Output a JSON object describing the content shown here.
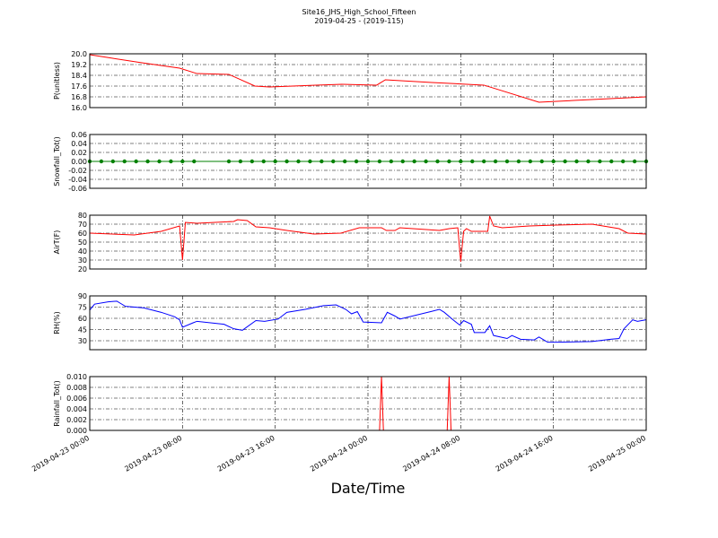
{
  "title": "Site16_JHS_High_School_Fifteen",
  "subtitle": "2019-04-25 - (2019-115)",
  "xlabel": "Date/Time",
  "xlim": [
    "2019-04-23 00:00",
    "2019-04-25 00:00"
  ],
  "xticks": [
    "2019-04-23 00:00",
    "2019-04-23 08:00",
    "2019-04-23 16:00",
    "2019-04-24 00:00",
    "2019-04-24 08:00",
    "2019-04-24 16:00",
    "2019-04-25 00:00"
  ],
  "chart_data": [
    {
      "type": "line",
      "ylabel": "P(unitless)",
      "color": "#ff0000",
      "grid": true,
      "ylim": [
        16.0,
        20.0
      ],
      "yticks": [
        {
          "value": 16.0,
          "label": "16.0"
        },
        16.8,
        17.6,
        18.4,
        19.2,
        {
          "value": 20.0,
          "label": "20.0"
        }
      ],
      "x": [
        "2019-04-23 00:00",
        "2019-04-23 01:30",
        "2019-04-23 04:30",
        "2019-04-23 07:45",
        "2019-04-23 09:15",
        "2019-04-23 12:00",
        "2019-04-23 14:15",
        "2019-04-23 15:30",
        "2019-04-23 19:30",
        "2019-04-23 21:45",
        "2019-04-24 00:45",
        "2019-04-24 01:30",
        "2019-04-24 05:30",
        "2019-04-24 10:00",
        "2019-04-24 11:30",
        "2019-04-24 14:45",
        "2019-04-24 17:45",
        "2019-04-24 22:30",
        "2019-04-25 00:00"
      ],
      "values": [
        19.93,
        19.73,
        19.33,
        18.93,
        18.53,
        18.47,
        17.6,
        17.53,
        17.67,
        17.73,
        17.67,
        18.07,
        17.87,
        17.67,
        17.27,
        16.4,
        16.53,
        16.73,
        16.8
      ]
    },
    {
      "type": "line",
      "ylabel": "Snowfall_Tot()",
      "color": "#008000",
      "markers": true,
      "grid": true,
      "ylim": [
        -0.06,
        0.06
      ],
      "yticks": [
        -0.06,
        -0.04,
        -0.02,
        {
          "value": 0,
          "label": "0.00"
        },
        0.02,
        0.04,
        0.06
      ],
      "x": [
        "2019-04-23 00:00",
        "2019-04-23 01:00",
        "2019-04-23 02:00",
        "2019-04-23 03:00",
        "2019-04-23 04:00",
        "2019-04-23 05:00",
        "2019-04-23 06:00",
        "2019-04-23 07:00",
        "2019-04-23 08:00",
        "2019-04-23 09:00",
        "2019-04-23 12:00",
        "2019-04-23 13:00",
        "2019-04-23 14:00",
        "2019-04-23 15:00",
        "2019-04-23 16:00",
        "2019-04-23 17:00",
        "2019-04-23 18:00",
        "2019-04-23 19:00",
        "2019-04-23 20:00",
        "2019-04-23 21:00",
        "2019-04-23 22:00",
        "2019-04-23 23:00",
        "2019-04-24 00:00",
        "2019-04-24 01:00",
        "2019-04-24 02:00",
        "2019-04-24 03:00",
        "2019-04-24 04:00",
        "2019-04-24 05:00",
        "2019-04-24 06:00",
        "2019-04-24 07:00",
        "2019-04-24 08:00",
        "2019-04-24 09:00",
        "2019-04-24 10:00",
        "2019-04-24 11:00",
        "2019-04-24 12:00",
        "2019-04-24 13:00",
        "2019-04-24 14:00",
        "2019-04-24 15:00",
        "2019-04-24 16:00",
        "2019-04-24 17:00",
        "2019-04-24 18:00",
        "2019-04-24 19:00",
        "2019-04-24 20:00",
        "2019-04-24 21:00",
        "2019-04-24 22:00",
        "2019-04-24 23:00",
        "2019-04-25 00:00"
      ],
      "values": [
        0,
        0,
        0,
        0,
        0,
        0,
        0,
        0,
        0,
        0,
        0,
        0,
        0,
        0,
        0,
        0,
        0,
        0,
        0,
        0,
        0,
        0,
        0,
        0,
        0,
        0,
        0,
        0,
        0,
        0,
        0,
        0,
        0,
        0,
        0,
        0,
        0,
        0,
        0,
        0,
        0,
        0,
        0,
        0,
        0,
        0,
        0
      ]
    },
    {
      "type": "line",
      "ylabel": "AirT(F)",
      "color": "#ff0000",
      "grid": true,
      "ylim": [
        20,
        80
      ],
      "yticks": [
        20,
        30,
        40,
        50,
        60,
        70,
        80
      ],
      "x": [
        "2019-04-23 00:00",
        "2019-04-23 03:50",
        "2019-04-23 06:10",
        "2019-04-23 07:45",
        "2019-04-23 08:00",
        "2019-04-23 08:15",
        "2019-04-23 09:15",
        "2019-04-23 12:25",
        "2019-04-23 12:45",
        "2019-04-23 13:35",
        "2019-04-23 14:20",
        "2019-04-23 15:30",
        "2019-04-23 17:00",
        "2019-04-23 19:20",
        "2019-04-23 21:40",
        "2019-04-23 23:15",
        "2019-04-24 01:10",
        "2019-04-24 01:35",
        "2019-04-24 02:20",
        "2019-04-24 02:45",
        "2019-04-24 06:10",
        "2019-04-24 07:00",
        "2019-04-24 07:45",
        "2019-04-24 08:00",
        "2019-04-24 08:15",
        "2019-04-24 08:30",
        "2019-04-24 08:55",
        "2019-04-24 10:20",
        "2019-04-24 10:30",
        "2019-04-24 10:50",
        "2019-04-24 11:35",
        "2019-04-24 13:55",
        "2019-04-24 16:15",
        "2019-04-24 19:20",
        "2019-04-24 21:40",
        "2019-04-24 22:25",
        "2019-04-25 00:00"
      ],
      "values": [
        60,
        58,
        62,
        68,
        30,
        72,
        71,
        73,
        75,
        74,
        67,
        66,
        63,
        59,
        60,
        66,
        66,
        63,
        63,
        66,
        63,
        65,
        66,
        28,
        62,
        65,
        62,
        62,
        79,
        68,
        66,
        68,
        69,
        70,
        65,
        60,
        59
      ]
    },
    {
      "type": "line",
      "ylabel": "RH(%)",
      "color": "#0000ff",
      "grid": true,
      "ylim": [
        18,
        90
      ],
      "yticks": [
        30,
        45,
        60,
        75,
        90
      ],
      "x": [
        "2019-04-23 00:00",
        "2019-04-23 00:25",
        "2019-04-23 01:35",
        "2019-04-23 02:20",
        "2019-04-23 03:05",
        "2019-04-23 04:40",
        "2019-04-23 06:10",
        "2019-04-23 07:20",
        "2019-04-23 07:45",
        "2019-04-23 08:00",
        "2019-04-23 08:55",
        "2019-04-23 09:15",
        "2019-04-23 11:35",
        "2019-04-23 12:25",
        "2019-04-23 13:10",
        "2019-04-23 14:20",
        "2019-04-23 15:05",
        "2019-04-23 16:15",
        "2019-04-23 17:00",
        "2019-04-23 18:35",
        "2019-04-23 20:10",
        "2019-04-23 21:15",
        "2019-04-23 22:05",
        "2019-04-23 22:35",
        "2019-04-23 23:05",
        "2019-04-23 23:35",
        "2019-04-24 01:10",
        "2019-04-24 01:40",
        "2019-04-24 02:20",
        "2019-04-24 02:45",
        "2019-04-24 05:25",
        "2019-04-24 06:10",
        "2019-04-24 06:35",
        "2019-04-24 07:20",
        "2019-04-24 07:55",
        "2019-04-24 08:15",
        "2019-04-24 08:55",
        "2019-04-24 09:10",
        "2019-04-24 10:05",
        "2019-04-24 10:30",
        "2019-04-24 10:50",
        "2019-04-24 12:00",
        "2019-04-24 12:25",
        "2019-04-24 13:10",
        "2019-04-24 14:20",
        "2019-04-24 14:45",
        "2019-04-24 15:30",
        "2019-04-24 16:15",
        "2019-04-24 19:20",
        "2019-04-24 20:55",
        "2019-04-24 21:40",
        "2019-04-24 22:05",
        "2019-04-24 22:50",
        "2019-04-24 23:15",
        "2019-04-25 00:00"
      ],
      "values": [
        71,
        79,
        82,
        83,
        76,
        74,
        68,
        62,
        58,
        48,
        54,
        56,
        52,
        46,
        44,
        57,
        56,
        59,
        68,
        72,
        77,
        78,
        72,
        66,
        69,
        55,
        54,
        68,
        63,
        59,
        69,
        72,
        68,
        58,
        51,
        57,
        52,
        41,
        41,
        50,
        37,
        33,
        37,
        32,
        31,
        35,
        28,
        28,
        29,
        32,
        33,
        46,
        58,
        56,
        58
      ]
    },
    {
      "type": "line",
      "ylabel": "Rainfall_Tot()",
      "color": "#ff0000",
      "grid": true,
      "ylim": [
        0,
        0.01
      ],
      "yticks": [
        {
          "value": 0,
          "label": "0.000"
        },
        {
          "value": 0.002,
          "label": "0.002"
        },
        {
          "value": 0.004,
          "label": "0.004"
        },
        {
          "value": 0.006,
          "label": "0.006"
        },
        {
          "value": 0.008,
          "label": "0.008"
        },
        {
          "value": 0.01,
          "label": "0.010"
        }
      ],
      "x": [
        "2019-04-23 00:00",
        "2019-04-24 01:00",
        "2019-04-24 01:10",
        "2019-04-24 01:20",
        "2019-04-24 06:50",
        "2019-04-24 07:00",
        "2019-04-24 07:10",
        "2019-04-25 00:00"
      ],
      "values": [
        0,
        0,
        0.01,
        0,
        0,
        0.01,
        0,
        0
      ]
    }
  ]
}
